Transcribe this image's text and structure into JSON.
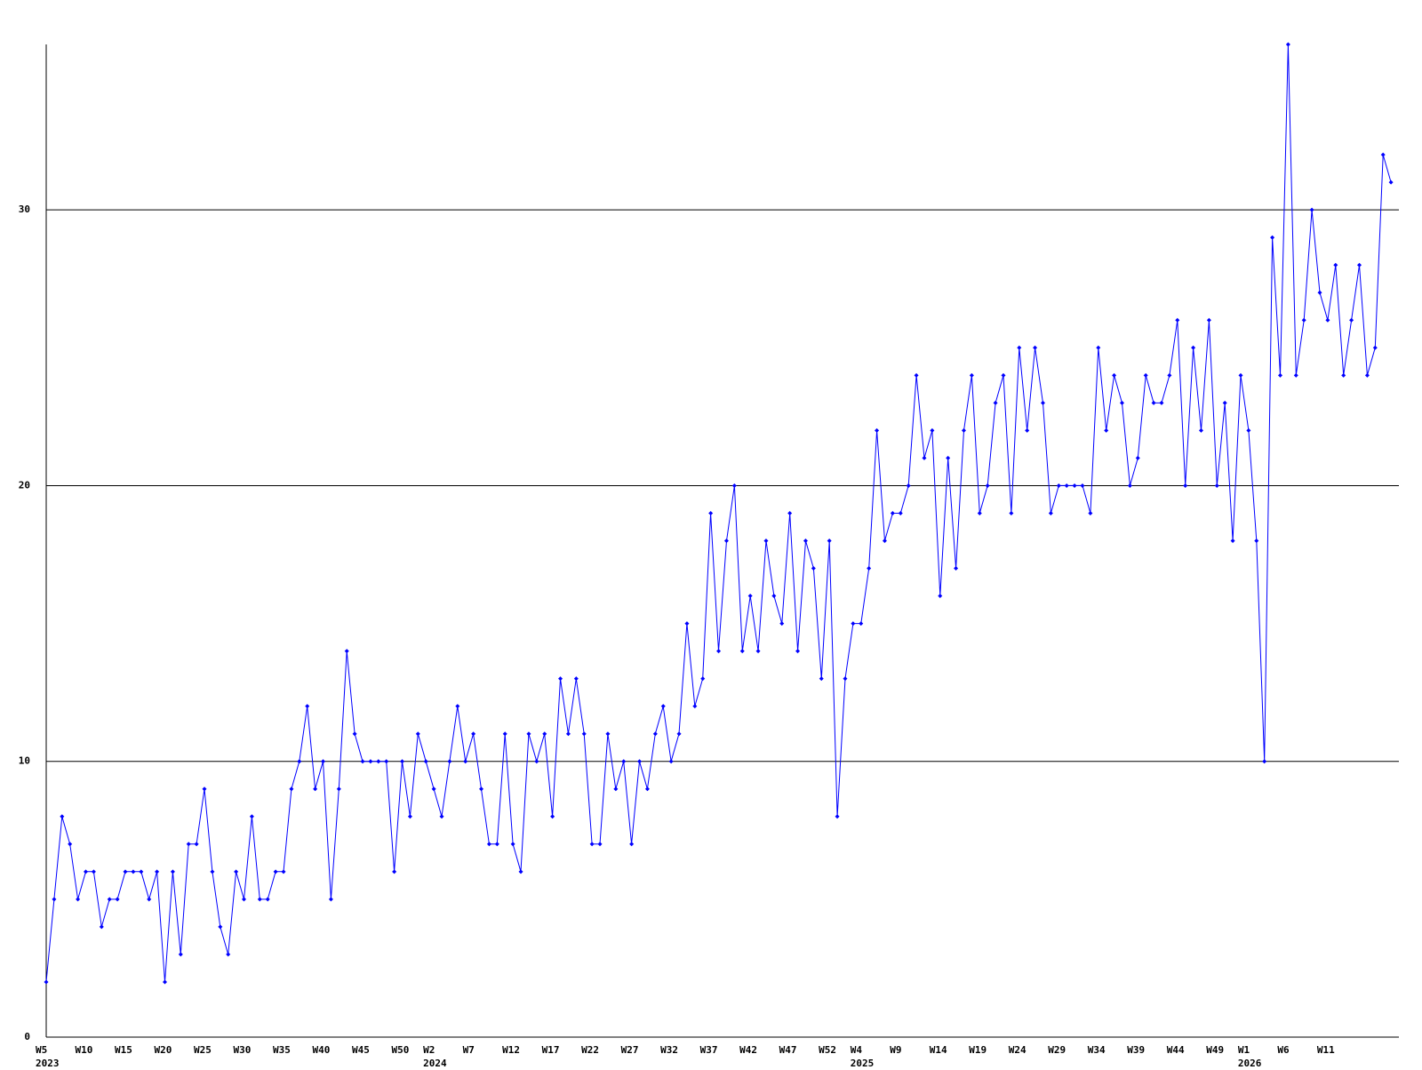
{
  "chart_data": {
    "type": "line",
    "color": "#0000ff",
    "grid": true,
    "ylim": [
      0,
      36
    ],
    "yticks": [
      0,
      10,
      20,
      30
    ],
    "categories": [
      "W5",
      null,
      null,
      null,
      null,
      "W10",
      null,
      null,
      null,
      null,
      "W15",
      null,
      null,
      null,
      null,
      "W20",
      null,
      null,
      null,
      null,
      "W25",
      null,
      null,
      null,
      null,
      "W30",
      null,
      null,
      null,
      null,
      "W35",
      null,
      null,
      null,
      null,
      "W40",
      null,
      null,
      null,
      null,
      "W45",
      null,
      null,
      null,
      null,
      "W50",
      null,
      null,
      null,
      "W2",
      null,
      null,
      null,
      null,
      "W7",
      null,
      null,
      null,
      null,
      "W12",
      null,
      null,
      null,
      null,
      "W17",
      null,
      null,
      null,
      null,
      "W22",
      null,
      null,
      null,
      null,
      "W27",
      null,
      null,
      null,
      null,
      "W32",
      null,
      null,
      null,
      null,
      "W37",
      null,
      null,
      null,
      null,
      "W42",
      null,
      null,
      null,
      null,
      "W47",
      null,
      null,
      null,
      null,
      "W52",
      null,
      null,
      null,
      "W4",
      null,
      null,
      null,
      null,
      "W9",
      null,
      null,
      null,
      null,
      "W14",
      null,
      null,
      null,
      null,
      "W19",
      null,
      null,
      null,
      null,
      "W24",
      null,
      null,
      null,
      null,
      "W29",
      null,
      null,
      null,
      null,
      "W34",
      null,
      null,
      null,
      null,
      "W39",
      null,
      null,
      null,
      null,
      "W44",
      null,
      null,
      null,
      null,
      "W49",
      null,
      null,
      null,
      "W1",
      null,
      null,
      null,
      null,
      "W6",
      null,
      null,
      null,
      null,
      "W11",
      null,
      null,
      null,
      null,
      null,
      null,
      null,
      null
    ],
    "category_years": [
      "2023",
      null,
      null,
      null,
      null,
      null,
      null,
      null,
      null,
      null,
      null,
      null,
      null,
      null,
      null,
      null,
      null,
      null,
      null,
      null,
      null,
      null,
      null,
      null,
      null,
      null,
      null,
      null,
      null,
      null,
      null,
      null,
      null,
      null,
      null,
      null,
      null,
      null,
      null,
      null,
      null,
      null,
      null,
      null,
      null,
      null,
      null,
      null,
      null,
      "2024",
      null,
      null,
      null,
      null,
      null,
      null,
      null,
      null,
      null,
      null,
      null,
      null,
      null,
      null,
      null,
      null,
      null,
      null,
      null,
      null,
      null,
      null,
      null,
      null,
      null,
      null,
      null,
      null,
      null,
      null,
      null,
      null,
      null,
      null,
      null,
      null,
      null,
      null,
      null,
      null,
      null,
      null,
      null,
      null,
      null,
      null,
      null,
      null,
      null,
      null,
      null,
      null,
      null,
      "2025",
      null,
      null,
      null,
      null,
      null,
      null,
      null,
      null,
      null,
      null,
      null,
      null,
      null,
      null,
      null,
      null,
      null,
      null,
      null,
      null,
      null,
      null,
      null,
      null,
      null,
      null,
      null,
      null,
      null,
      null,
      null,
      null,
      null,
      null,
      null,
      null,
      null,
      null,
      null,
      null,
      null,
      null,
      null,
      null,
      null,
      null,
      null,
      null,
      "2026",
      null,
      null,
      null,
      null,
      null,
      null,
      null,
      null,
      null,
      null,
      null,
      null,
      null,
      null,
      null,
      null,
      null,
      null
    ],
    "values": [
      2,
      5,
      8,
      7,
      5,
      6,
      6,
      4,
      5,
      5,
      6,
      6,
      6,
      5,
      6,
      2,
      6,
      3,
      7,
      7,
      9,
      6,
      4,
      3,
      6,
      5,
      8,
      5,
      5,
      6,
      6,
      9,
      10,
      12,
      9,
      10,
      5,
      9,
      14,
      11,
      10,
      10,
      10,
      10,
      6,
      10,
      8,
      11,
      10,
      9,
      8,
      10,
      12,
      10,
      11,
      9,
      7,
      7,
      11,
      7,
      6,
      11,
      10,
      11,
      8,
      13,
      11,
      13,
      11,
      7,
      7,
      11,
      9,
      10,
      7,
      10,
      9,
      11,
      12,
      10,
      11,
      15,
      12,
      13,
      19,
      14,
      18,
      20,
      14,
      16,
      14,
      18,
      16,
      15,
      19,
      14,
      18,
      17,
      13,
      18,
      8,
      13,
      15,
      15,
      17,
      22,
      18,
      19,
      19,
      20,
      24,
      21,
      22,
      16,
      21,
      17,
      22,
      24,
      19,
      20,
      23,
      24,
      19,
      25,
      22,
      25,
      23,
      19,
      20,
      20,
      20,
      20,
      19,
      25,
      22,
      24,
      23,
      20,
      21,
      24,
      23,
      23,
      24,
      26,
      20,
      25,
      22,
      26,
      20,
      23,
      18,
      24,
      22,
      18,
      10,
      29,
      24,
      36,
      24,
      26,
      30,
      27,
      26,
      28,
      24,
      26,
      28,
      24,
      25,
      32,
      31
    ]
  }
}
